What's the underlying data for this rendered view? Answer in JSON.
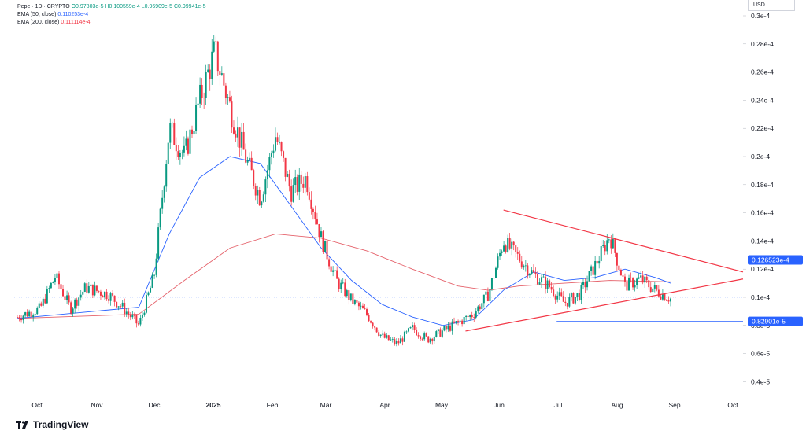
{
  "legend": {
    "title": "Pepe · 1D · CRYPTO",
    "ohlc": "O0.97803e-5 H0.100559e-4 L0.96909e-5 C0.99941e-5",
    "ema50_label": "EMA (50, close)",
    "ema50_value": "0.110253e-4",
    "ema200_label": "EMA (200, close)",
    "ema200_value": "0.111114e-4"
  },
  "currency": "USD",
  "brand": "TradingView",
  "colors": {
    "up": "#089981",
    "down": "#f23645",
    "ema50": "#2962ff",
    "ema200": "#e5626b",
    "trendline": "#f23645",
    "hline": "#2962ff"
  },
  "chart_data": {
    "type": "candlestick",
    "y_unit": "USD",
    "ylim": [
      3.5e-06,
      3.1e-05
    ],
    "y_ticks": [
      {
        "value": 4e-06,
        "label": "0.4e-5"
      },
      {
        "value": 6e-06,
        "label": "0.6e-5"
      },
      {
        "value": 8e-06,
        "label": "0.8e-5"
      },
      {
        "value": 1e-05,
        "label": "0.1e-4"
      },
      {
        "value": 1.2e-05,
        "label": "0.12e-4"
      },
      {
        "value": 1.4e-05,
        "label": "0.14e-4"
      },
      {
        "value": 1.6e-05,
        "label": "0.16e-4"
      },
      {
        "value": 1.8e-05,
        "label": "0.18e-4"
      },
      {
        "value": 2e-05,
        "label": "0.2e-4"
      },
      {
        "value": 2.2e-05,
        "label": "0.22e-4"
      },
      {
        "value": 2.4e-05,
        "label": "0.24e-4"
      },
      {
        "value": 2.6e-05,
        "label": "0.26e-4"
      },
      {
        "value": 2.8e-05,
        "label": "0.28e-4"
      },
      {
        "value": 3e-05,
        "label": "0.3e-4"
      }
    ],
    "x_ticks": [
      {
        "label": "Oct",
        "bold": false
      },
      {
        "label": "Nov",
        "bold": false
      },
      {
        "label": "Dec",
        "bold": false
      },
      {
        "label": "2025",
        "bold": true
      },
      {
        "label": "Feb",
        "bold": false
      },
      {
        "label": "Mar",
        "bold": false
      },
      {
        "label": "Apr",
        "bold": false
      },
      {
        "label": "May",
        "bold": false
      },
      {
        "label": "Jun",
        "bold": false
      },
      {
        "label": "Jul",
        "bold": false
      },
      {
        "label": "Aug",
        "bold": false
      },
      {
        "label": "Sep",
        "bold": false
      },
      {
        "label": "Oct",
        "bold": false
      }
    ],
    "last_candle_index": 43,
    "anchors": [
      [
        0,
        8.6e-06
      ],
      [
        3,
        9.2e-06
      ],
      [
        5,
        1.15e-05
      ],
      [
        7,
        9.2e-06
      ],
      [
        9,
        1.07e-05
      ],
      [
        12,
        1.02e-05
      ],
      [
        14,
        9.2e-06
      ],
      [
        16,
        8e-06
      ],
      [
        18,
        1.15e-05
      ],
      [
        20,
        2.2e-05
      ],
      [
        22,
        2e-05
      ],
      [
        24,
        2.4e-05
      ],
      [
        26,
        2.75e-05
      ],
      [
        28,
        2.35e-05
      ],
      [
        30,
        2e-05
      ],
      [
        32,
        1.7e-05
      ],
      [
        34,
        2.15e-05
      ],
      [
        36,
        1.75e-05
      ],
      [
        38,
        1.85e-05
      ],
      [
        40,
        1.42e-05
      ],
      [
        42,
        1.12e-05
      ],
      [
        44,
        9.8e-06
      ],
      [
        46,
        8.8e-06
      ],
      [
        48,
        7.2e-06
      ],
      [
        50,
        6.7e-06
      ],
      [
        52,
        7.8e-06
      ],
      [
        54,
        7e-06
      ],
      [
        56,
        7.6e-06
      ],
      [
        58,
        8.2e-06
      ],
      [
        60,
        8.8e-06
      ],
      [
        62,
        1.02e-05
      ],
      [
        64,
        1.4e-05
      ],
      [
        66,
        1.28e-05
      ],
      [
        68,
        1.16e-05
      ],
      [
        70,
        1.08e-05
      ],
      [
        72,
        9.6e-06
      ],
      [
        74,
        1.02e-05
      ],
      [
        76,
        1.22e-05
      ],
      [
        78,
        1.44e-05
      ],
      [
        80,
        1.08e-05
      ],
      [
        82,
        1.13e-05
      ],
      [
        84,
        1.05e-05
      ],
      [
        86,
        9.9e-06
      ]
    ],
    "ema50": [
      [
        0,
        8.5e-06
      ],
      [
        10,
        9e-06
      ],
      [
        16,
        9.3e-06
      ],
      [
        20,
        1.45e-05
      ],
      [
        24,
        1.85e-05
      ],
      [
        28,
        2e-05
      ],
      [
        32,
        1.95e-05
      ],
      [
        36,
        1.65e-05
      ],
      [
        40,
        1.35e-05
      ],
      [
        44,
        1.12e-05
      ],
      [
        48,
        9.5e-06
      ],
      [
        52,
        8.6e-06
      ],
      [
        56,
        8e-06
      ],
      [
        60,
        8.4e-06
      ],
      [
        64,
        1.05e-05
      ],
      [
        68,
        1.18e-05
      ],
      [
        72,
        1.12e-05
      ],
      [
        76,
        1.14e-05
      ],
      [
        80,
        1.2e-05
      ],
      [
        84,
        1.14e-05
      ],
      [
        86,
        1.1e-05
      ]
    ],
    "ema200": [
      [
        0,
        8.5e-06
      ],
      [
        16,
        8.8e-06
      ],
      [
        22,
        1.12e-05
      ],
      [
        28,
        1.35e-05
      ],
      [
        34,
        1.45e-05
      ],
      [
        40,
        1.42e-05
      ],
      [
        46,
        1.33e-05
      ],
      [
        52,
        1.2e-05
      ],
      [
        58,
        1.08e-05
      ],
      [
        62,
        1.05e-05
      ],
      [
        66,
        1.08e-05
      ],
      [
        72,
        1.1e-05
      ],
      [
        78,
        1.12e-05
      ],
      [
        86,
        1.11e-05
      ]
    ],
    "trendlines": [
      {
        "from": [
          64,
          1.62e-05
        ],
        "to": [
          100,
          1.18e-05
        ]
      },
      {
        "from": [
          59,
          7.6e-06
        ],
        "to": [
          100,
          1.13e-05
        ]
      }
    ],
    "horizontal_levels": [
      {
        "value": 1.26523e-05,
        "label": "0.126523e-4",
        "from_index": 80
      },
      {
        "value": 8.2901e-06,
        "label": "0.82901e-5",
        "from_index": 71
      }
    ]
  }
}
